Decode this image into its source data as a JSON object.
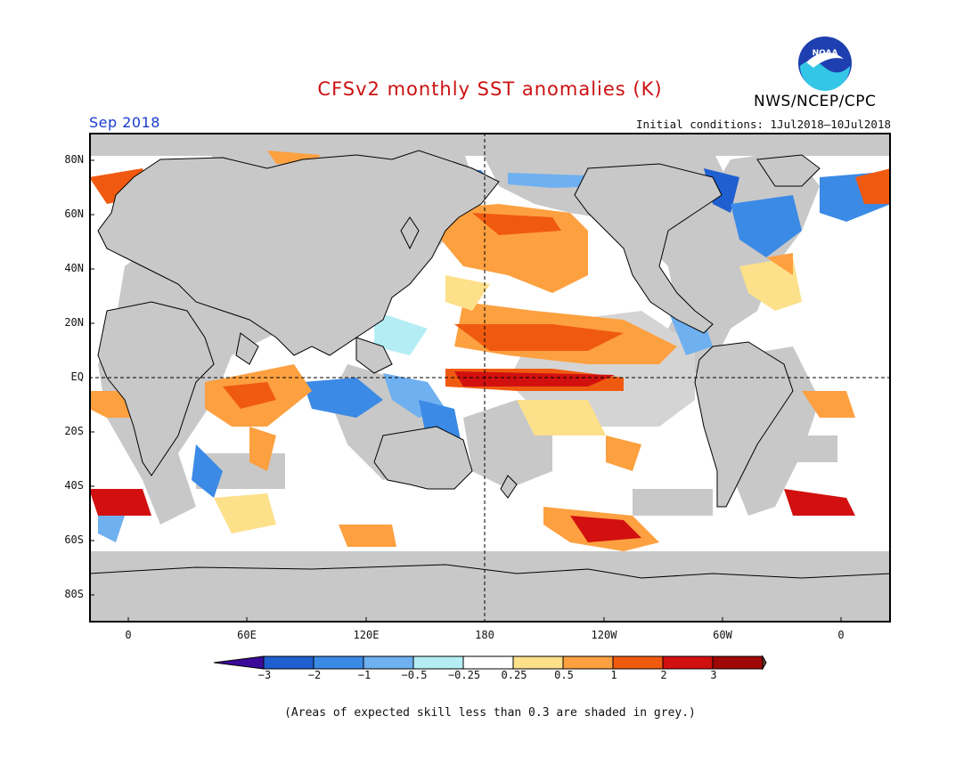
{
  "header": {
    "title": "CFSv2 monthly SST anomalies (K)",
    "agency": "NWS/NCEP/CPC",
    "logo_text": "NOAA",
    "valid_month": "Sep 2018",
    "initial_conditions": "Initial conditions: 1Jul2018–10Jul2018"
  },
  "map": {
    "lat_labels": [
      "80N",
      "60N",
      "40N",
      "20N",
      "EQ",
      "20S",
      "40S",
      "60S",
      "80S"
    ],
    "lon_labels": [
      "0",
      "60E",
      "120E",
      "180",
      "120W",
      "60W",
      "0"
    ],
    "land_color": "#c8c8c8",
    "ocean_base_color": "#ffffff"
  },
  "colorbar": {
    "labels": [
      "−3",
      "−2",
      "−1",
      "−0.5",
      "−0.25",
      "0.25",
      "0.5",
      "1",
      "2",
      "3"
    ],
    "colors": [
      "#3c0a9a",
      "#1f5fd0",
      "#3b8ae6",
      "#6fb0f0",
      "#b4eef4",
      "#ffffff",
      "#fde08a",
      "#fda040",
      "#f05a10",
      "#d21010",
      "#a00808",
      "#6b4230"
    ]
  },
  "footnote": "(Areas of expected skill less than 0.3 are shaded in grey.)"
}
